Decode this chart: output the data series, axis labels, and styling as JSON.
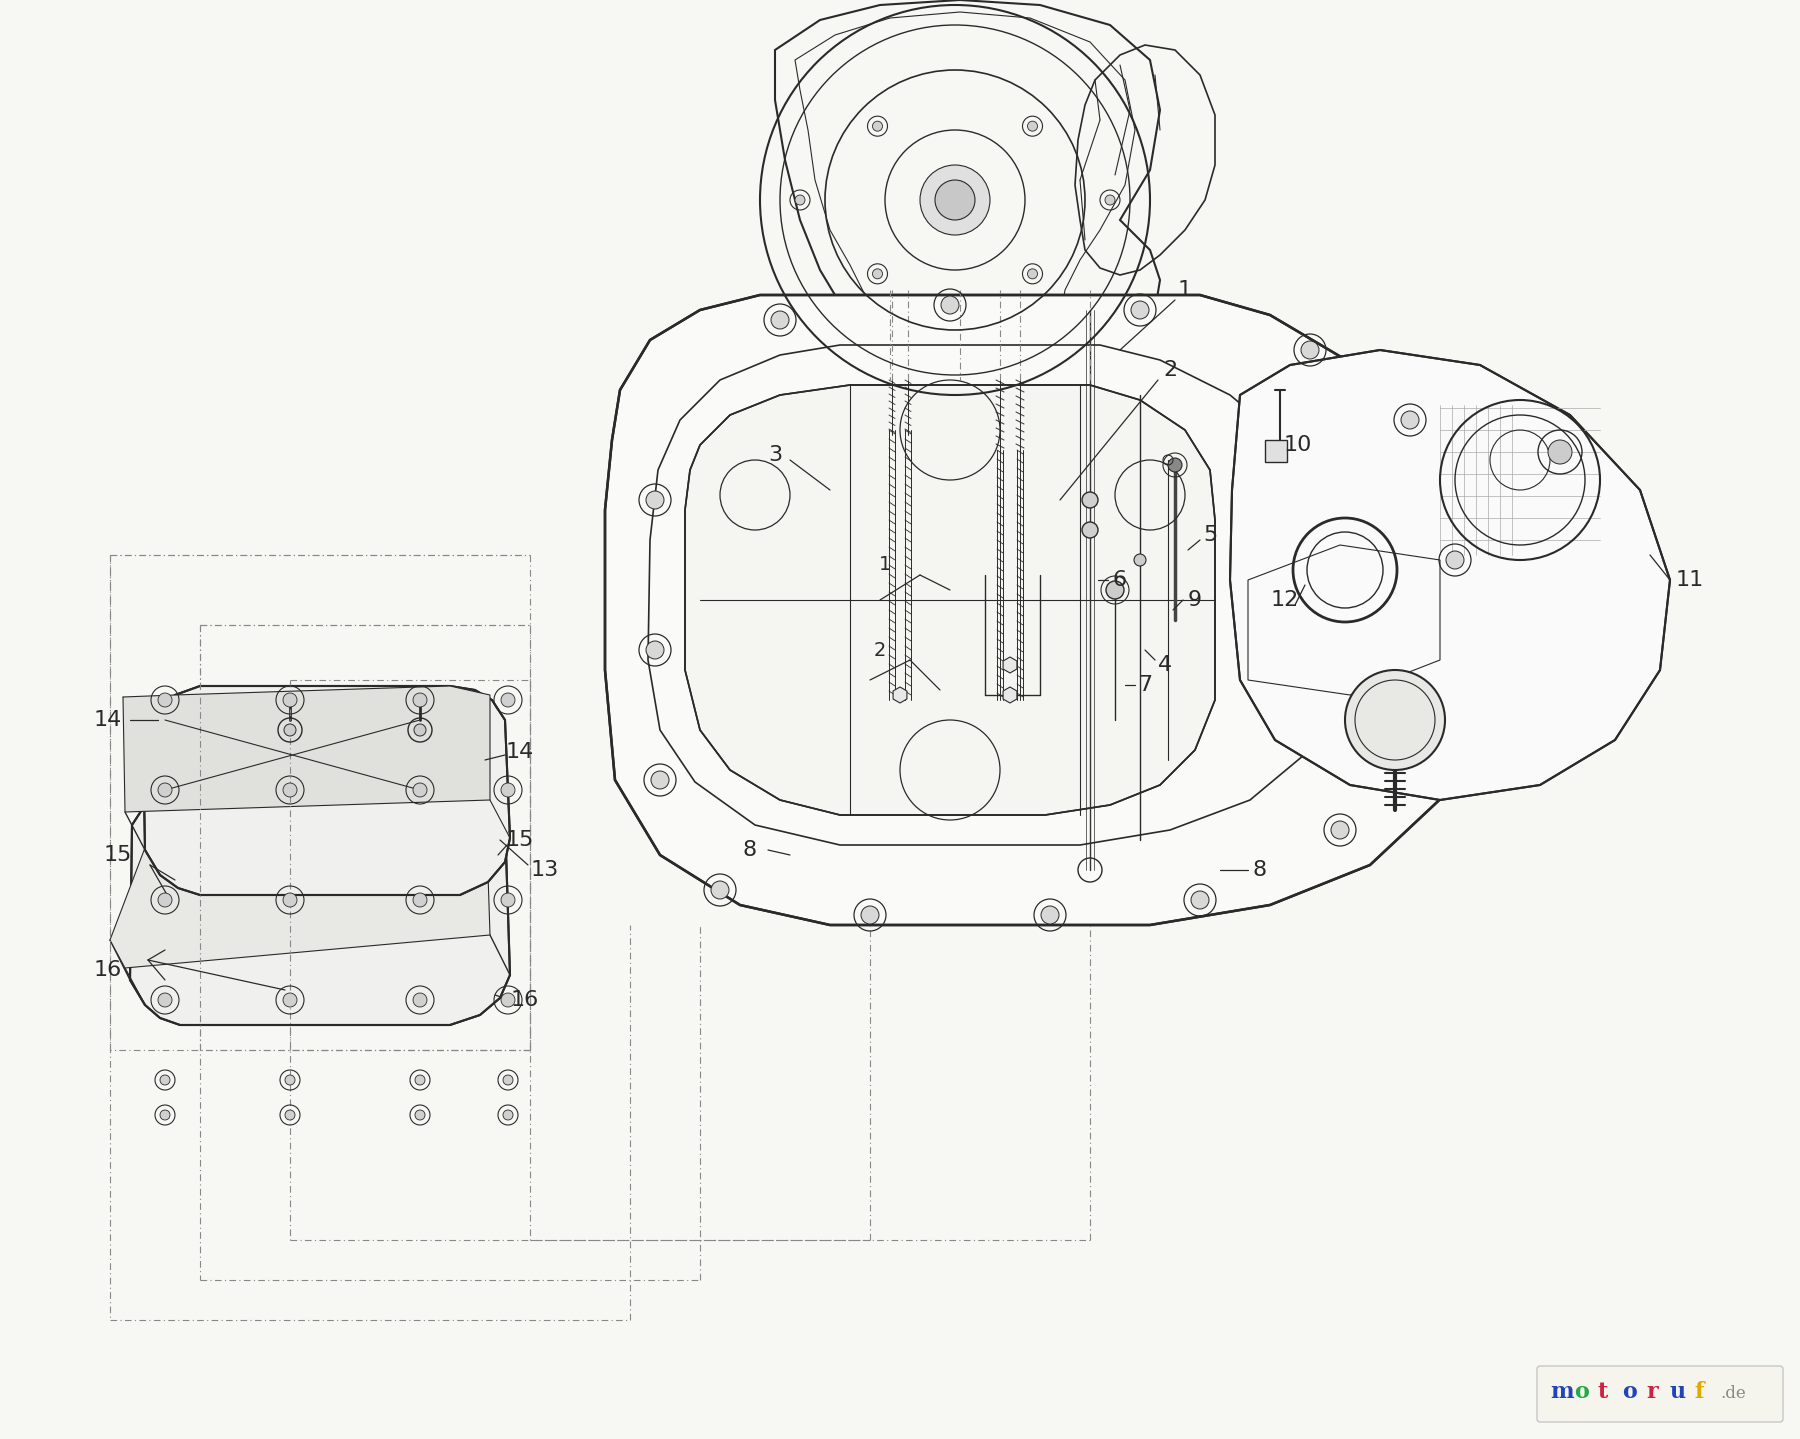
{
  "background_color": "#f7f7f4",
  "line_color": "#2a2a2a",
  "dashed_color": "#888888",
  "watermark_letters": [
    "m",
    "o",
    "t",
    "o",
    "r",
    "u",
    "f"
  ],
  "watermark_colors": [
    "#2244bb",
    "#22aa44",
    "#cc2244",
    "#2244bb",
    "#cc2244",
    "#2244bb",
    "#ddaa00"
  ],
  "figsize": [
    18.0,
    14.39
  ],
  "dpi": 100
}
